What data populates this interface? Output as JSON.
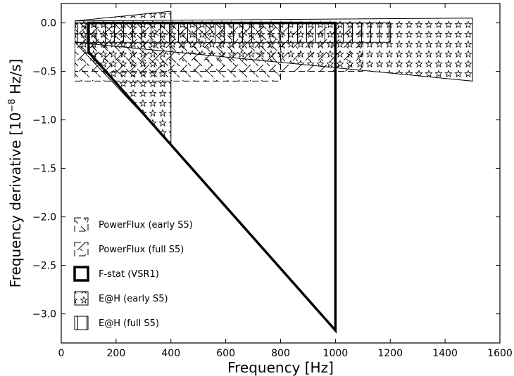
{
  "chart_data": {
    "type": "area",
    "xlabel": "Frequency [Hz]",
    "ylabel": "Frequency derivative [10",
    "ylabel_exponent": "−8",
    "ylabel_suffix": " Hz/s]",
    "xlim": [
      0,
      1600
    ],
    "ylim": [
      -3.3,
      0.2
    ],
    "x_ticks": [
      0,
      200,
      400,
      600,
      800,
      1000,
      1200,
      1400,
      1600
    ],
    "x_tick_labels": [
      "0",
      "200",
      "400",
      "600",
      "800",
      "1000",
      "1200",
      "1400",
      "1600"
    ],
    "y_ticks": [
      0.0,
      -0.5,
      -1.0,
      -1.5,
      -2.0,
      -2.5,
      -3.0
    ],
    "y_tick_labels": [
      "0.0",
      "−0.5",
      "−1.0",
      "−1.5",
      "−2.0",
      "−2.5",
      "−3.0"
    ],
    "grid": false,
    "legend_position": "lower-left",
    "series": [
      {
        "name": "PowerFlux (early S5)",
        "style": "dashed",
        "hatch": "back-slash",
        "polygons": [
          [
            [
              50,
              0
            ],
            [
              800,
              0
            ],
            [
              800,
              -0.6
            ],
            [
              50,
              -0.6
            ]
          ]
        ]
      },
      {
        "name": "PowerFlux (full S5)",
        "style": "dashed",
        "hatch": "slash-cross",
        "polygons": [
          [
            [
              50,
              0
            ],
            [
              1100,
              0
            ],
            [
              1100,
              -0.5
            ],
            [
              50,
              -0.5
            ]
          ]
        ]
      },
      {
        "name": "F-stat (VSR1)",
        "style": "thick",
        "hatch": "none",
        "polygons": [
          [
            [
              100,
              0
            ],
            [
              1000,
              0
            ],
            [
              1000,
              -3.17
            ],
            [
              100,
              -0.3
            ]
          ]
        ]
      },
      {
        "name": "E@H (early S5)",
        "style": "solid",
        "hatch": "stars",
        "polygons": [
          [
            [
              50,
              0.02
            ],
            [
              400,
              0.12
            ],
            [
              400,
              -1.25
            ],
            [
              50,
              -0.2
            ]
          ],
          [
            [
              50,
              0.02
            ],
            [
              1500,
              0.05
            ],
            [
              1500,
              -0.6
            ],
            [
              50,
              -0.2
            ]
          ]
        ]
      },
      {
        "name": "E@H (full S5)",
        "style": "solid",
        "hatch": "vertical",
        "polygons": [
          [
            [
              50,
              0
            ],
            [
              1200,
              0
            ],
            [
              1200,
              -0.2
            ],
            [
              50,
              -0.2
            ]
          ]
        ]
      }
    ]
  },
  "colors": {
    "line": "#000000",
    "background": "#ffffff"
  }
}
